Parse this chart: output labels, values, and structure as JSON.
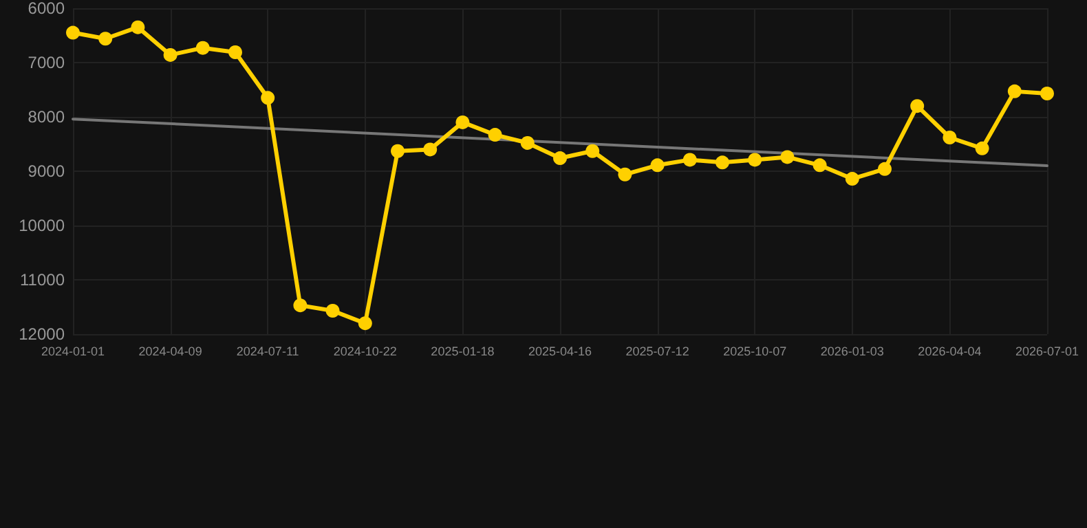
{
  "chart_data": {
    "type": "line",
    "categories": [
      "2024-01-01",
      null,
      null,
      "2024-04-09",
      null,
      null,
      "2024-07-11",
      null,
      null,
      "2024-10-22",
      null,
      null,
      "2025-01-18",
      null,
      null,
      "2025-04-16",
      null,
      null,
      "2025-07-12",
      null,
      null,
      "2025-10-07",
      null,
      null,
      "2026-01-03",
      null,
      null,
      "2026-04-04",
      null,
      null,
      "2026-07-01"
    ],
    "series": [
      {
        "color": "#ffd000",
        "marker": "circle",
        "values": [
          6450,
          6560,
          6350,
          6860,
          6730,
          6810,
          7650,
          11470,
          11570,
          11800,
          8630,
          8600,
          8100,
          8330,
          8480,
          8760,
          8630,
          9060,
          8890,
          8790,
          8840,
          8790,
          8740,
          8890,
          9140,
          8960,
          7800,
          8380,
          8580,
          7530,
          7570
        ]
      },
      {
        "color": "#777777",
        "marker": "none",
        "values": [
          8040,
          null,
          null,
          null,
          null,
          null,
          null,
          null,
          null,
          null,
          null,
          null,
          null,
          null,
          null,
          null,
          null,
          null,
          null,
          null,
          null,
          null,
          null,
          null,
          null,
          null,
          null,
          null,
          null,
          null,
          8900
        ]
      }
    ],
    "ylim": [
      12000,
      6000
    ],
    "yticks": [
      6000,
      7000,
      8000,
      9000,
      10000,
      11000,
      12000
    ],
    "grid": true,
    "line_style": "solid"
  }
}
